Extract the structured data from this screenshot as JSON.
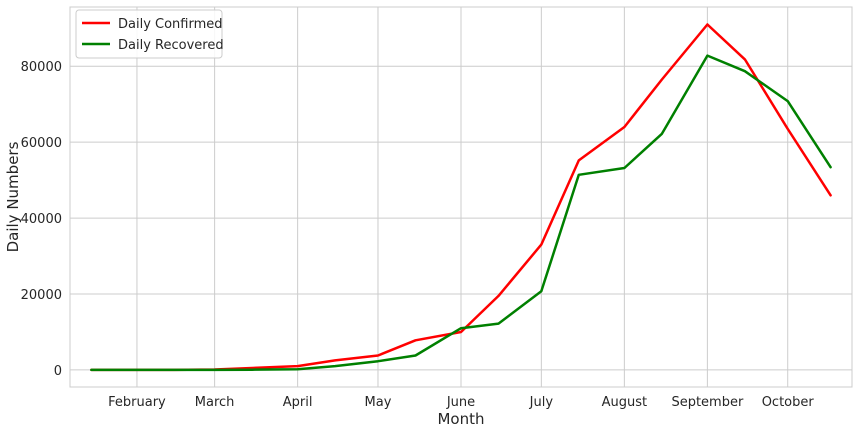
{
  "chart_data": {
    "type": "line",
    "title": "",
    "xlabel": "Month",
    "ylabel": "Daily Numbers",
    "grid": true,
    "legend_position": "top-left",
    "x": [
      "2020-01-15",
      "2020-01-30",
      "2020-02-15",
      "2020-03-01",
      "2020-03-15",
      "2020-04-01",
      "2020-04-15",
      "2020-05-01",
      "2020-05-15",
      "2020-06-01",
      "2020-06-15",
      "2020-07-01",
      "2020-07-15",
      "2020-08-01",
      "2020-08-15",
      "2020-09-01",
      "2020-09-15",
      "2020-10-01",
      "2020-10-17"
    ],
    "xticks": [
      {
        "label": "February",
        "date": "2020-02-01"
      },
      {
        "label": "March",
        "date": "2020-03-01"
      },
      {
        "label": "April",
        "date": "2020-04-01"
      },
      {
        "label": "May",
        "date": "2020-05-01"
      },
      {
        "label": "June",
        "date": "2020-06-01"
      },
      {
        "label": "July",
        "date": "2020-07-01"
      },
      {
        "label": "August",
        "date": "2020-08-01"
      },
      {
        "label": "September",
        "date": "2020-09-01"
      },
      {
        "label": "October",
        "date": "2020-10-01"
      }
    ],
    "xlim": [
      "2020-01-07",
      "2020-10-25"
    ],
    "yticks": [
      0,
      20000,
      40000,
      60000,
      80000
    ],
    "ylim": [
      -4500,
      95600
    ],
    "series": [
      {
        "name": "Daily Confirmed",
        "color": "#ff0000",
        "values": [
          0,
          0,
          0,
          100,
          500,
          1000,
          2500,
          3800,
          7800,
          10000,
          19500,
          33000,
          55200,
          64000,
          76500,
          91000,
          81800,
          63500,
          46000
        ]
      },
      {
        "name": "Daily Recovered",
        "color": "#008000",
        "values": [
          0,
          0,
          0,
          0,
          50,
          200,
          1000,
          2300,
          3800,
          11000,
          12200,
          20700,
          51400,
          53200,
          62200,
          82800,
          78700,
          70800,
          53400
        ]
      }
    ]
  }
}
